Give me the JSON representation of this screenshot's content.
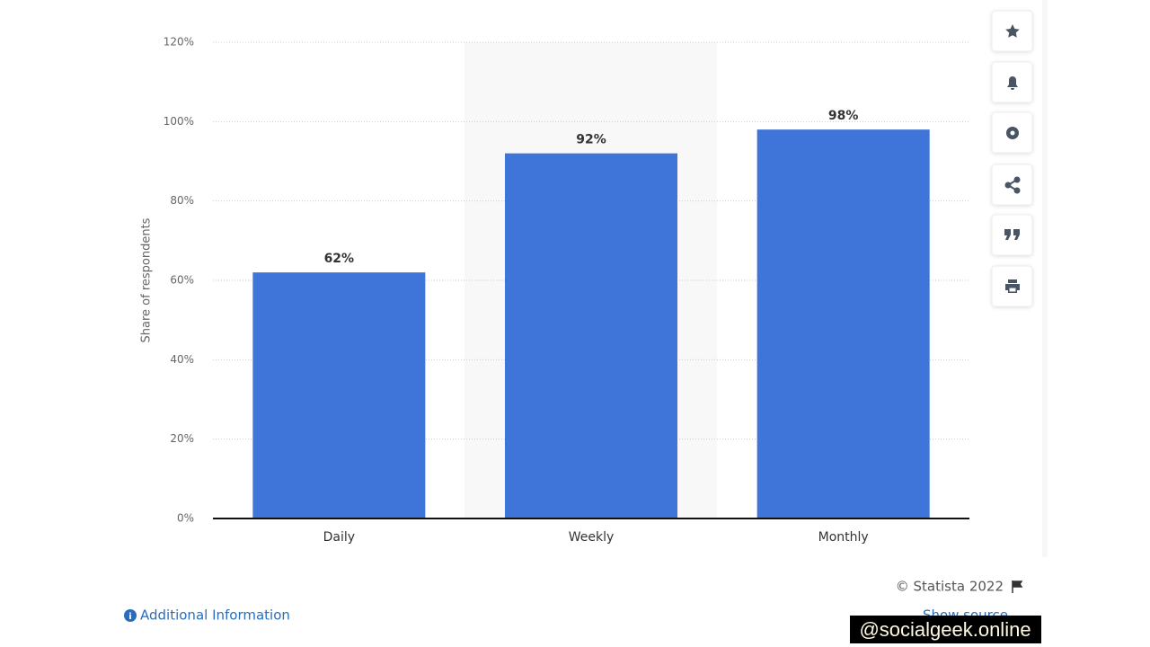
{
  "chart_data": {
    "type": "bar",
    "y_label": "Share of respondents",
    "categories": [
      "Daily",
      "Weekly",
      "Monthly"
    ],
    "values": [
      62,
      92,
      98
    ],
    "value_labels": [
      "62%",
      "92%",
      "98%"
    ],
    "color": "#3f74d8",
    "ylim": [
      0,
      120
    ],
    "yticks": [
      {
        "value": 0,
        "label": "0%"
      },
      {
        "value": 20,
        "label": "20%"
      },
      {
        "value": 40,
        "label": "40%"
      },
      {
        "value": 60,
        "label": "60%"
      },
      {
        "value": 80,
        "label": "80%"
      },
      {
        "value": 100,
        "label": "100%"
      },
      {
        "value": 120,
        "label": "120%"
      }
    ],
    "grid": true
  },
  "footer": {
    "copyright": "© Statista 2022",
    "additional_info": "Additional Information",
    "show_source": "Show source"
  },
  "watermark": "@socialgeek.online"
}
